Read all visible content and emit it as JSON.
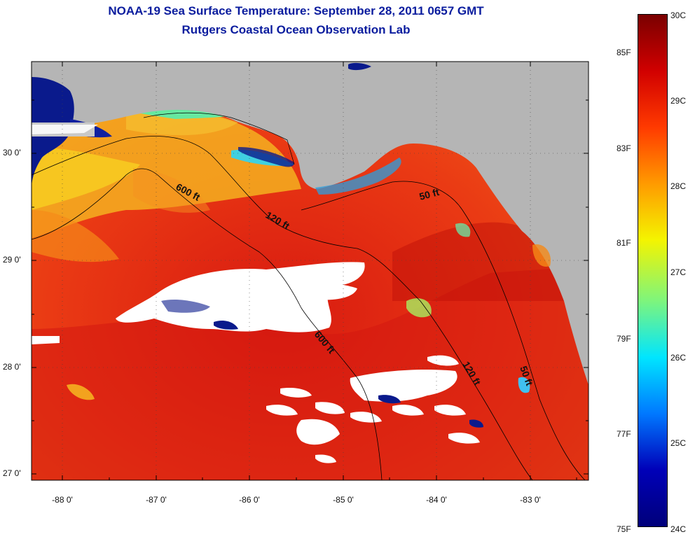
{
  "title": "NOAA-19 Sea Surface Temperature:  September 28, 2011 0657 GMT",
  "subtitle": "Rutgers Coastal Ocean Observation Lab",
  "axes": {
    "lat_labels": [
      "30 0'",
      "29 0'",
      "28 0'",
      "27 0'"
    ],
    "lon_labels": [
      "-88 0'",
      "-87 0'",
      "-86 0'",
      "-85 0'",
      "-84 0'",
      "-83 0'"
    ]
  },
  "contours": {
    "ft600": "600 ft",
    "ft120": "120 ft",
    "ft50": "50 ft"
  },
  "colorbar": {
    "celsius": [
      "30C",
      "29C",
      "28C",
      "27C",
      "26C",
      "25C",
      "24C"
    ],
    "fahrenheit": [
      "85F",
      "83F",
      "81F",
      "79F",
      "77F",
      "75F"
    ],
    "colors": [
      "#7a0000",
      "#d10000",
      "#ff3a00",
      "#ff9a00",
      "#f4f400",
      "#7df57d",
      "#00e5ff",
      "#0078ff",
      "#0000b8",
      "#00007a"
    ]
  },
  "map_colors": {
    "land": "#b5b5b5",
    "cloud": "#ffffff",
    "warm_water": "#e8401a",
    "cool_water": "#0a1a8c"
  }
}
